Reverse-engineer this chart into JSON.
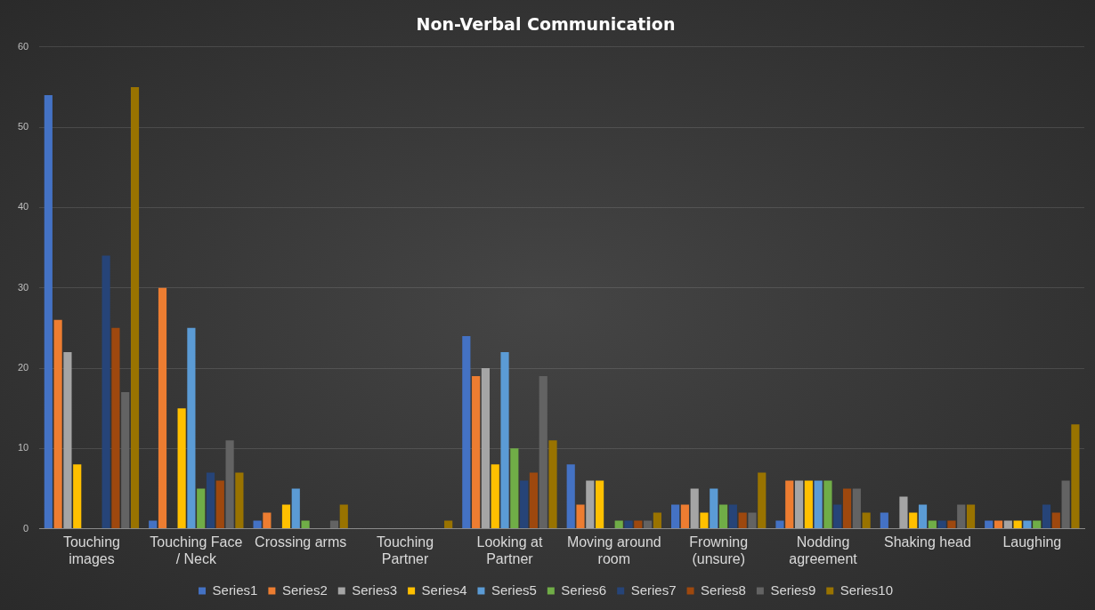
{
  "chart_data": {
    "type": "bar",
    "title": "Non-Verbal Communication",
    "categories": [
      "Touching images",
      "Touching Face / Neck",
      "Crossing arms",
      "Touching Partner",
      "Looking at Partner",
      "Moving around room",
      "Frowning (unsure)",
      "Nodding agreement",
      "Shaking head",
      "Laughing"
    ],
    "series": [
      {
        "name": "Series1",
        "color": "#4472c4",
        "values": [
          54,
          1,
          1,
          0,
          24,
          8,
          3,
          1,
          2,
          1
        ]
      },
      {
        "name": "Series2",
        "color": "#ed7d31",
        "values": [
          26,
          30,
          2,
          0,
          19,
          3,
          3,
          6,
          0,
          1
        ]
      },
      {
        "name": "Series3",
        "color": "#a5a5a5",
        "values": [
          22,
          0,
          0,
          0,
          20,
          6,
          5,
          6,
          4,
          1
        ]
      },
      {
        "name": "Series4",
        "color": "#ffc000",
        "values": [
          8,
          15,
          3,
          0,
          8,
          6,
          2,
          6,
          2,
          1
        ]
      },
      {
        "name": "Series5",
        "color": "#5b9bd5",
        "values": [
          0,
          25,
          5,
          0,
          22,
          0,
          5,
          6,
          3,
          1
        ]
      },
      {
        "name": "Series6",
        "color": "#70ad47",
        "values": [
          0,
          5,
          1,
          0,
          10,
          1,
          3,
          6,
          1,
          1
        ]
      },
      {
        "name": "Series7",
        "color": "#264478",
        "values": [
          34,
          7,
          0,
          0,
          6,
          1,
          3,
          3,
          1,
          3
        ]
      },
      {
        "name": "Series8",
        "color": "#9e480e",
        "values": [
          25,
          6,
          0,
          0,
          7,
          1,
          2,
          5,
          1,
          2
        ]
      },
      {
        "name": "Series9",
        "color": "#636363",
        "values": [
          17,
          11,
          1,
          0,
          19,
          1,
          2,
          5,
          3,
          6
        ]
      },
      {
        "name": "Series10",
        "color": "#997300",
        "values": [
          55,
          7,
          3,
          1,
          11,
          2,
          7,
          2,
          3,
          13
        ]
      }
    ],
    "ylim": [
      0,
      60
    ],
    "yticks": [
      0,
      10,
      20,
      30,
      40,
      50,
      60
    ],
    "grid": "y",
    "legend": "bottom"
  }
}
